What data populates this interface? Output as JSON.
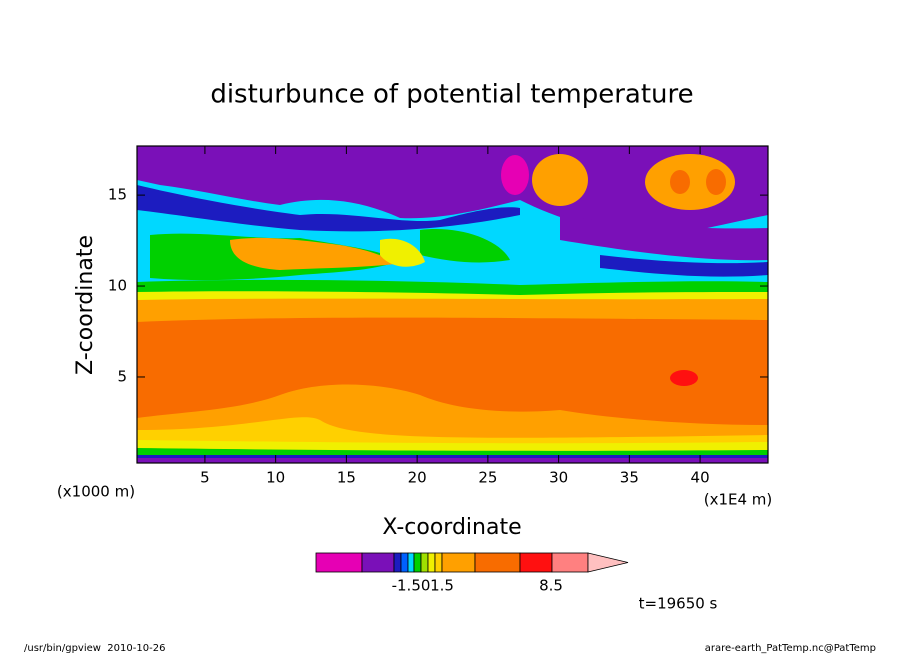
{
  "chart_data": {
    "type": "contour",
    "title": "disturbunce of potential temperature",
    "x_label": "X-coordinate",
    "y_label": "Z-coordinate",
    "x_unit": "(x1E4 m)",
    "y_unit": "(x1000 m)",
    "xlim": [
      0.2,
      44.8
    ],
    "ylim": [
      0.27,
      17.7
    ],
    "xticks": [
      5,
      10,
      15,
      20,
      25,
      30,
      35,
      40
    ],
    "yticks": [
      5,
      10,
      15
    ],
    "colorbar": {
      "colors": [
        "#e600b4",
        "#7a10b8",
        "#1c1cc0",
        "#0060ff",
        "#00d8ff",
        "#00d000",
        "#a0e000",
        "#f0f000",
        "#ffd000",
        "#ffa000",
        "#f86c00",
        "#ff1010",
        "#ff8080",
        "#ffc0c0"
      ],
      "labels": [
        "-1.50",
        "1.5",
        "8.5"
      ]
    },
    "time_label": "t=19650 s"
  },
  "footer": {
    "left": "/usr/bin/gpview  2010-10-26",
    "right": "arare-earth_PatTemp.nc@PatTemp"
  }
}
